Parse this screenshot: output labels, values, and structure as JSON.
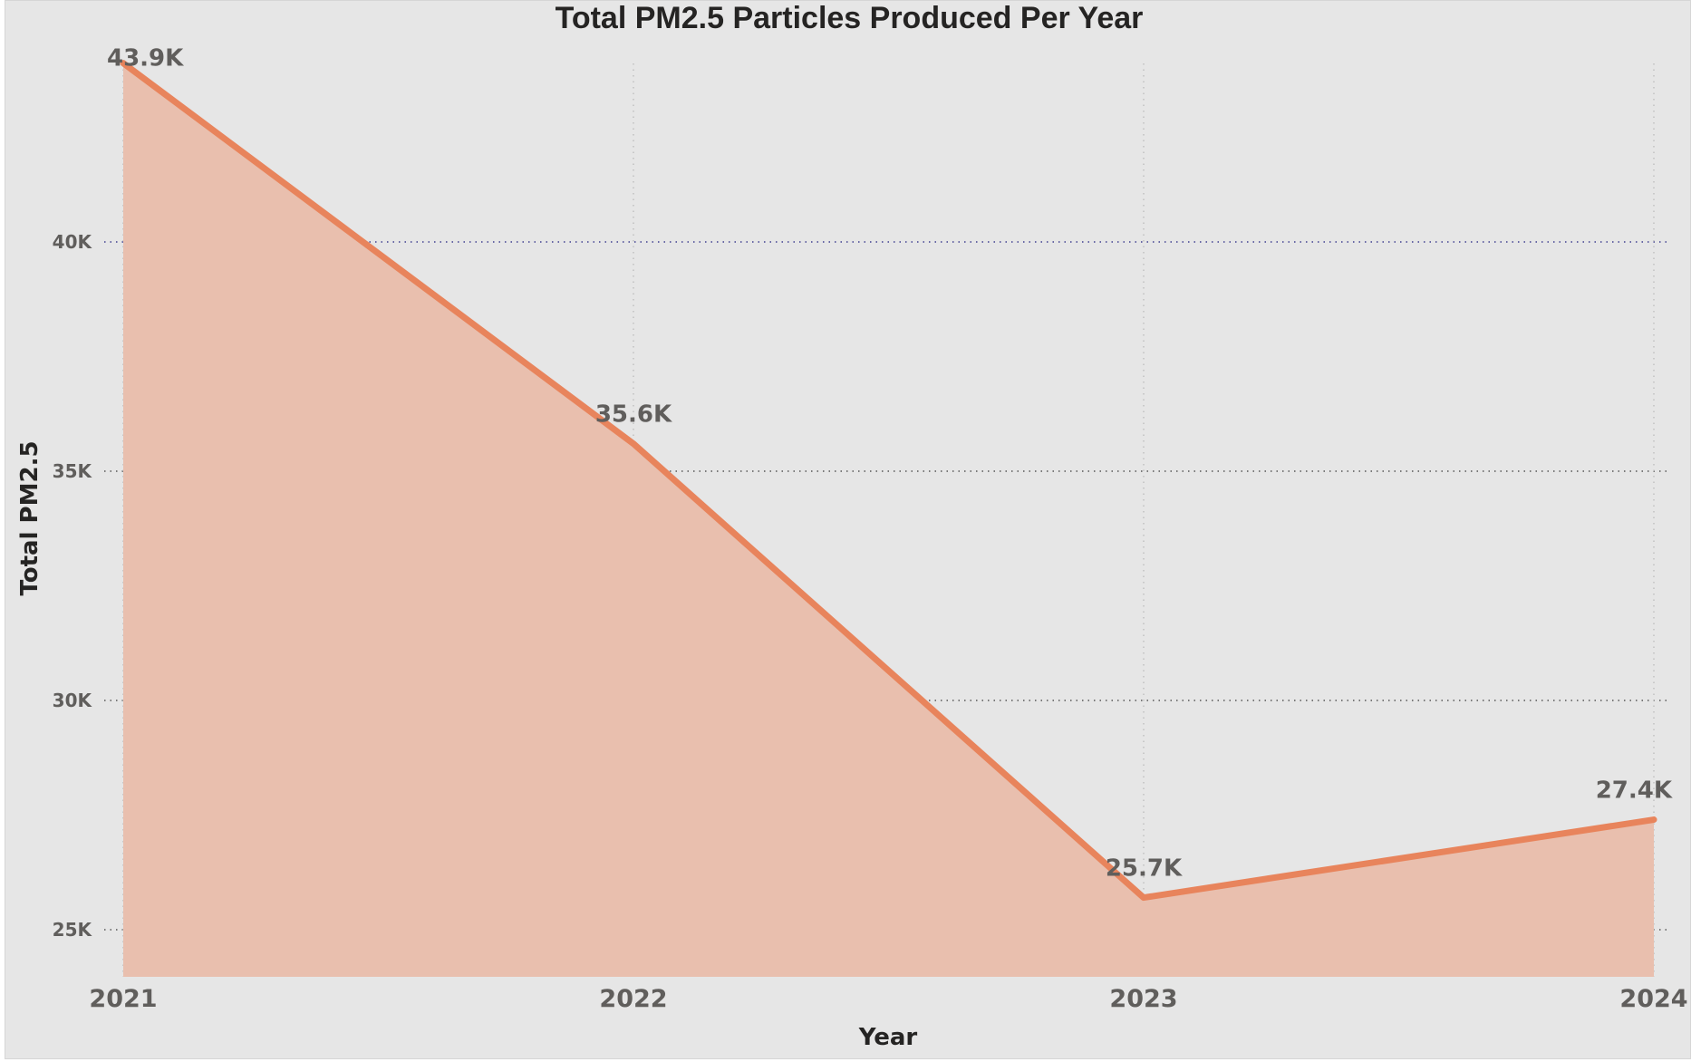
{
  "chart_data": {
    "type": "area",
    "title": "Total PM2.5 Particles Produced Per Year",
    "xlabel": "Year",
    "ylabel": "Total PM2.5",
    "categories": [
      "2021",
      "2022",
      "2023",
      "2024"
    ],
    "series": [
      {
        "values": [
          43900,
          35600,
          25700,
          27400
        ],
        "data_labels": [
          "43.9K",
          "35.6K",
          "25.7K",
          "27.4K"
        ],
        "line_color": "#e8845c",
        "fill_color": "#e9bfae"
      }
    ],
    "yticks": [
      25000,
      30000,
      35000,
      40000
    ],
    "ytick_labels": [
      "25K",
      "30K",
      "35K",
      "40K"
    ],
    "ylim": [
      24000,
      44000
    ],
    "grid": true,
    "gridline_highlight_color": "#3f3f8f",
    "gridline_color": "#555555"
  }
}
